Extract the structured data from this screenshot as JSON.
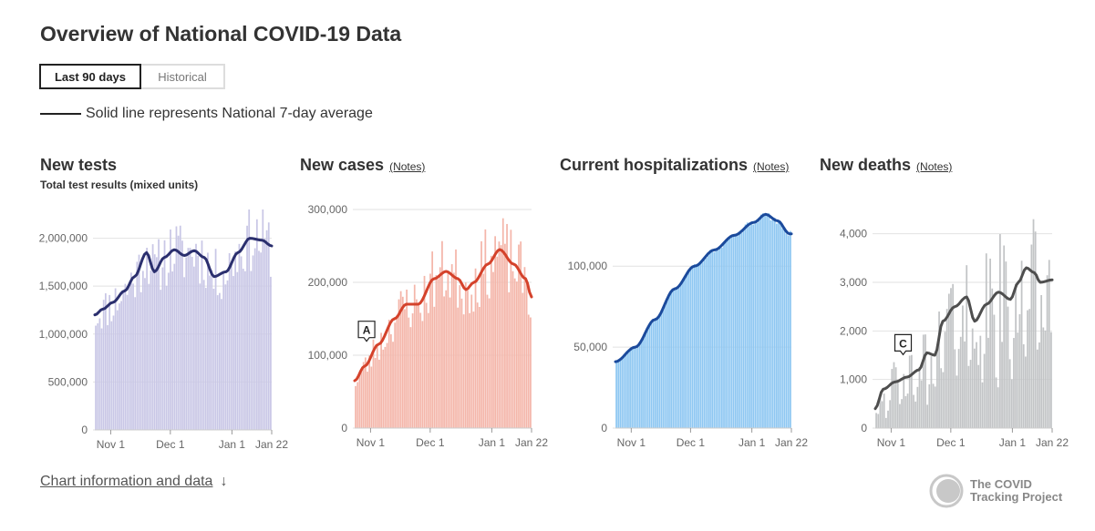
{
  "page": {
    "title": "Overview of National COVID-19 Data",
    "tabs": [
      {
        "label": "Last 90 days",
        "active": true
      },
      {
        "label": "Historical",
        "active": false
      }
    ],
    "legend_text": "Solid line represents National 7-day average",
    "footer_link": "Chart information and data",
    "footer_arrow": "↓",
    "logo_line1": "The COVID",
    "logo_line2": "Tracking Project"
  },
  "chart_data": [
    {
      "type": "bar",
      "title": "New tests",
      "subtitle": "Total test results (mixed units)",
      "notes_label": "",
      "bar_color": "#c9c7e6",
      "line_color": "#2b2f6e",
      "ylim": [
        0,
        2300000
      ],
      "yticks": [
        0,
        500000,
        1000000,
        1500000,
        2000000
      ],
      "ytick_labels": [
        "0",
        "500,000",
        "1,000,000",
        "1,500,000",
        "2,000,000"
      ],
      "xtick_labels": [
        "Nov 1",
        "Dec 1",
        "Jan 1",
        "Jan 22"
      ],
      "annotation": null,
      "avg_anchors": [
        [
          0,
          1200000
        ],
        [
          4,
          1260000
        ],
        [
          9,
          1330000
        ],
        [
          15,
          1450000
        ],
        [
          20,
          1600000
        ],
        [
          26,
          1850000
        ],
        [
          30,
          1650000
        ],
        [
          35,
          1800000
        ],
        [
          40,
          1880000
        ],
        [
          45,
          1820000
        ],
        [
          50,
          1870000
        ],
        [
          55,
          1800000
        ],
        [
          60,
          1600000
        ],
        [
          66,
          1650000
        ],
        [
          72,
          1850000
        ],
        [
          78,
          2000000
        ],
        [
          84,
          1980000
        ],
        [
          89,
          1920000
        ]
      ],
      "bar_jitter": 0.18,
      "seed": 11
    },
    {
      "type": "bar",
      "title": "New cases",
      "subtitle": "",
      "notes_label": "(Notes)",
      "bar_color": "#f4b6aa",
      "line_color": "#d4422b",
      "ylim": [
        0,
        300000
      ],
      "yticks": [
        0,
        100000,
        200000,
        300000
      ],
      "ytick_labels": [
        "0",
        "100,000",
        "200,000",
        "300,000"
      ],
      "xtick_labels": [
        "Nov 1",
        "Dec 1",
        "Jan 1",
        "Jan 22"
      ],
      "annotation": {
        "label": "A",
        "day": 6
      },
      "avg_anchors": [
        [
          0,
          65000
        ],
        [
          5,
          85000
        ],
        [
          12,
          115000
        ],
        [
          20,
          150000
        ],
        [
          26,
          170000
        ],
        [
          32,
          170000
        ],
        [
          40,
          205000
        ],
        [
          46,
          215000
        ],
        [
          52,
          205000
        ],
        [
          56,
          190000
        ],
        [
          60,
          200000
        ],
        [
          67,
          225000
        ],
        [
          73,
          245000
        ],
        [
          80,
          225000
        ],
        [
          86,
          205000
        ],
        [
          89,
          180000
        ]
      ],
      "bar_jitter": 0.22,
      "seed": 23
    },
    {
      "type": "bar",
      "title": "Current hospitalizations",
      "subtitle": "",
      "notes_label": "(Notes)",
      "bar_color": "#8ec7f2",
      "line_color": "#1b4a9c",
      "ylim": [
        0,
        135000
      ],
      "yticks": [
        0,
        50000,
        100000
      ],
      "ytick_labels": [
        "0",
        "50,000",
        "100,000"
      ],
      "xtick_labels": [
        "Nov 1",
        "Dec 1",
        "Jan 1",
        "Jan 22"
      ],
      "annotation": null,
      "avg_anchors": [
        [
          0,
          41000
        ],
        [
          10,
          50000
        ],
        [
          20,
          67000
        ],
        [
          30,
          86000
        ],
        [
          40,
          100000
        ],
        [
          50,
          110000
        ],
        [
          60,
          119000
        ],
        [
          70,
          127000
        ],
        [
          76,
          132000
        ],
        [
          82,
          128000
        ],
        [
          88,
          120000
        ]
      ],
      "bar_jitter": 0.015,
      "seed": 5
    },
    {
      "type": "bar",
      "title": "New deaths",
      "subtitle": "",
      "notes_label": "(Notes)",
      "bar_color": "#c2c4c6",
      "line_color": "#4e4e4e",
      "ylim": [
        0,
        4500
      ],
      "yticks": [
        0,
        1000,
        2000,
        3000,
        4000
      ],
      "ytick_labels": [
        "0",
        "1,000",
        "2,000",
        "3,000",
        "4,000"
      ],
      "xtick_labels": [
        "Nov 1",
        "Dec 1",
        "Jan 1",
        "Jan 22"
      ],
      "annotation": {
        "label": "C",
        "day": 14
      },
      "avg_anchors": [
        [
          0,
          400
        ],
        [
          4,
          800
        ],
        [
          10,
          950
        ],
        [
          16,
          1050
        ],
        [
          22,
          1200
        ],
        [
          26,
          1550
        ],
        [
          30,
          1500
        ],
        [
          34,
          2200
        ],
        [
          40,
          2500
        ],
        [
          46,
          2700
        ],
        [
          50,
          2200
        ],
        [
          56,
          2550
        ],
        [
          62,
          2800
        ],
        [
          68,
          2650
        ],
        [
          72,
          3000
        ],
        [
          76,
          3300
        ],
        [
          80,
          3200
        ],
        [
          83,
          3000
        ],
        [
          89,
          3050
        ]
      ],
      "bar_jitter": 0.45,
      "seed": 42
    }
  ]
}
